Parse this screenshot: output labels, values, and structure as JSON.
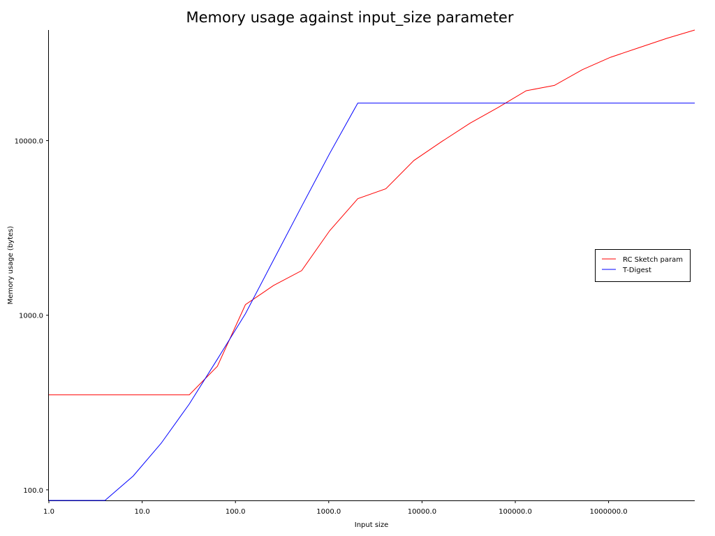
{
  "chart_data": {
    "type": "line",
    "title": "Memory usage against input_size parameter",
    "xlabel": "Input size",
    "ylabel": "Memory usage (bytes)",
    "x_scale": "log2",
    "y_scale": "log",
    "xlim": [
      1,
      8388608
    ],
    "ylim": [
      87,
      43000
    ],
    "x_ticks": [
      1,
      10,
      100,
      1000,
      10000,
      100000,
      1000000
    ],
    "x_tick_labels": [
      "1.0",
      "10.0",
      "100.0",
      "1000.0",
      "10000.0",
      "100000.0",
      "1000000.0"
    ],
    "y_ticks": [
      100,
      1000,
      10000
    ],
    "y_tick_labels": [
      "100.0",
      "1000.0",
      "10000.0"
    ],
    "grid": false,
    "legend_position": "center-right",
    "series": [
      {
        "name": "RC Sketch param",
        "color": "#ff0000",
        "x": [
          1,
          2,
          4,
          8,
          16,
          32,
          64,
          128,
          256,
          512,
          1024,
          2048,
          4096,
          8192,
          16384,
          32768,
          65536,
          131072,
          262144,
          524288,
          1048576,
          2097152,
          4194304,
          8388608
        ],
        "y": [
          350,
          350,
          350,
          350,
          350,
          350,
          510,
          1150,
          1480,
          1800,
          3050,
          4650,
          5300,
          7700,
          9900,
          12600,
          15500,
          19300,
          20700,
          25500,
          30000,
          34000,
          38500,
          43000
        ]
      },
      {
        "name": "T-Digest",
        "color": "#0000ff",
        "x": [
          1,
          2,
          4,
          8,
          16,
          32,
          64,
          128,
          256,
          512,
          1024,
          2048,
          4096,
          8192,
          16384,
          32768,
          65536,
          131072,
          262144,
          524288,
          1048576,
          2097152,
          4194304,
          8388608
        ],
        "y": [
          87,
          87,
          87,
          120,
          185,
          310,
          560,
          1020,
          2070,
          4200,
          8450,
          16400,
          16400,
          16400,
          16400,
          16400,
          16400,
          16400,
          16400,
          16400,
          16400,
          16400,
          16400,
          16400
        ]
      }
    ]
  }
}
